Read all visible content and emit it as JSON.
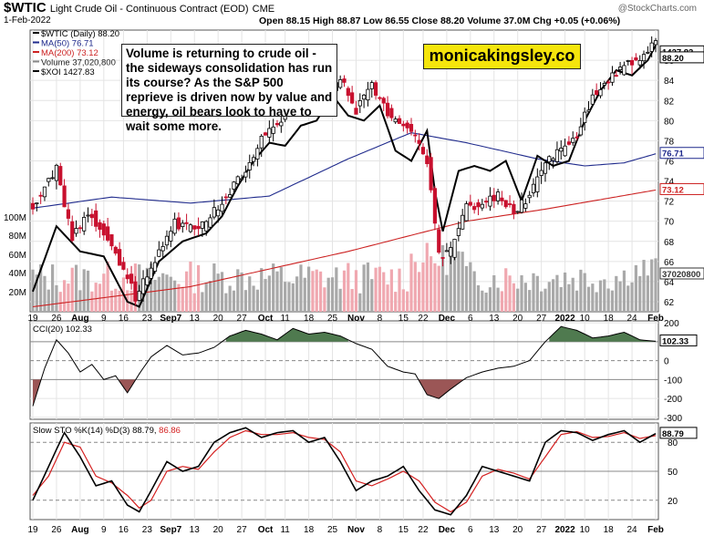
{
  "header": {
    "symbol": "$WTIC",
    "name": "Light Crude Oil - Continuous Contract (EOD)",
    "exchange": "CME",
    "watermark": "@StockCharts.com",
    "date": "1-Feb-2022",
    "ohlc": "Open 88.15  High 88.87  Low 86.55  Close 88.20  Volume 37.0M  Chg +0.05 (+0.06%)"
  },
  "annotation": "Volume is returning to crude oil - the sideways consolidation has run its course? As the S&P 500 reprieve is driven now by value and energy, oil bears look to have to wait some more.",
  "brand": "monicakingsley.co",
  "legend": {
    "price": "$WTIC (Daily) 88.20",
    "ma50": "MA(50) 76.71",
    "ma200": "MA(200) 73.12",
    "volume": "Volume 37,020,800",
    "xoi": "$XOI 1427.83",
    "cci": "CCI(20) 102.33",
    "sto_title": "Slow STO %K(14) %D(3) 88.79,",
    "sto_d": "86.86"
  },
  "colors": {
    "up": "#000000",
    "down": "#c8102e",
    "ma50": "#1f2a8c",
    "ma200": "#cc2222",
    "vol_up": "#a9a9a9",
    "vol_down": "#f0a8b0",
    "cci_pos": "#4f7a4f",
    "cci_neg": "#9b5656",
    "sto_k": "#000000",
    "sto_d": "#d42020"
  },
  "x_axis_labels": [
    "19",
    "26",
    "Aug",
    "9",
    "16",
    "23",
    "Sep7",
    "13",
    "20",
    "27",
    "Oct",
    "11",
    "18",
    "25",
    "Nov",
    "8",
    "15",
    "22",
    "Dec",
    "6",
    "13",
    "20",
    "27",
    "2022",
    "10",
    "18",
    "24",
    "Feb"
  ],
  "chart_data": [
    {
      "type": "candlestick",
      "title": "$WTIC Light Crude Oil - Continuous Contract (EOD)",
      "ylim": [
        61,
        89
      ],
      "y_ticks": [
        62,
        64,
        66,
        68,
        70,
        72,
        74,
        76,
        78,
        80,
        82,
        84,
        86
      ],
      "volume_ticks": [
        "20M",
        "40M",
        "60M",
        "80M",
        "100M"
      ],
      "last_labels": {
        "close": "88.20",
        "xoi": "1427.83",
        "ma50": "76.71",
        "ma200": "73.12",
        "volume": "37020800"
      },
      "close_keypoints": [
        [
          0,
          71.5
        ],
        [
          6,
          75.2
        ],
        [
          10,
          68.2
        ],
        [
          14,
          71.0
        ],
        [
          20,
          67.8
        ],
        [
          26,
          62.5
        ],
        [
          30,
          65.5
        ],
        [
          36,
          69.8
        ],
        [
          42,
          69.0
        ],
        [
          48,
          72.0
        ],
        [
          54,
          75.0
        ],
        [
          58,
          78.5
        ],
        [
          62,
          79.5
        ],
        [
          66,
          82.5
        ],
        [
          70,
          83.4
        ],
        [
          74,
          82.0
        ],
        [
          78,
          84.2
        ],
        [
          82,
          81.0
        ],
        [
          86,
          83.5
        ],
        [
          90,
          80.8
        ],
        [
          96,
          78.8
        ],
        [
          100,
          76.0
        ],
        [
          103,
          66.5
        ],
        [
          106,
          67.0
        ],
        [
          110,
          71.5
        ],
        [
          114,
          71.6
        ],
        [
          118,
          72.5
        ],
        [
          122,
          71.0
        ],
        [
          126,
          72.5
        ],
        [
          130,
          76.0
        ],
        [
          134,
          77.0
        ],
        [
          138,
          78.5
        ],
        [
          142,
          82.5
        ],
        [
          146,
          84.0
        ],
        [
          150,
          85.5
        ],
        [
          154,
          86.0
        ],
        [
          158,
          88.2
        ]
      ],
      "ma50_keypoints": [
        [
          0,
          71.3
        ],
        [
          20,
          72.4
        ],
        [
          40,
          71.8
        ],
        [
          60,
          72.5
        ],
        [
          80,
          76.2
        ],
        [
          96,
          78.8
        ],
        [
          110,
          77.8
        ],
        [
          128,
          76.2
        ],
        [
          140,
          75.5
        ],
        [
          150,
          75.8
        ],
        [
          158,
          76.7
        ]
      ],
      "ma200_keypoints": [
        [
          0,
          61.5
        ],
        [
          40,
          63.5
        ],
        [
          80,
          67.0
        ],
        [
          110,
          70.0
        ],
        [
          130,
          71.2
        ],
        [
          158,
          73.1
        ]
      ],
      "xoi_keypoints": [
        [
          0,
          63.0
        ],
        [
          6,
          69.5
        ],
        [
          12,
          67.0
        ],
        [
          18,
          66.5
        ],
        [
          24,
          62.0
        ],
        [
          27,
          61.5
        ],
        [
          32,
          66.0
        ],
        [
          38,
          68.0
        ],
        [
          44,
          68.8
        ],
        [
          48,
          70.5
        ],
        [
          52,
          73.5
        ],
        [
          56,
          76.0
        ],
        [
          60,
          77.8
        ],
        [
          64,
          77.5
        ],
        [
          68,
          79.5
        ],
        [
          72,
          80.0
        ],
        [
          76,
          82.5
        ],
        [
          80,
          80.5
        ],
        [
          84,
          80.0
        ],
        [
          88,
          81.5
        ],
        [
          92,
          77.0
        ],
        [
          96,
          76.0
        ],
        [
          100,
          79.0
        ],
        [
          102,
          73.0
        ],
        [
          104,
          69.0
        ],
        [
          108,
          75.0
        ],
        [
          112,
          75.5
        ],
        [
          116,
          75.0
        ],
        [
          120,
          76.0
        ],
        [
          124,
          72.0
        ],
        [
          128,
          76.5
        ],
        [
          132,
          75.5
        ],
        [
          136,
          76.0
        ],
        [
          140,
          80.0
        ],
        [
          144,
          83.0
        ],
        [
          148,
          85.0
        ],
        [
          152,
          84.5
        ],
        [
          156,
          86.0
        ],
        [
          158,
          87.5
        ]
      ]
    },
    {
      "type": "line",
      "title": "CCI(20)",
      "ylim": [
        -310,
        210
      ],
      "y_ticks": [
        -300,
        -200,
        -100,
        0,
        100,
        200
      ],
      "last_label": "102.33",
      "keypoints": [
        [
          0,
          -240
        ],
        [
          3,
          -40
        ],
        [
          6,
          110
        ],
        [
          9,
          40
        ],
        [
          12,
          -60
        ],
        [
          15,
          -20
        ],
        [
          18,
          -100
        ],
        [
          21,
          -80
        ],
        [
          24,
          -170
        ],
        [
          27,
          -70
        ],
        [
          30,
          20
        ],
        [
          34,
          80
        ],
        [
          38,
          30
        ],
        [
          42,
          40
        ],
        [
          46,
          70
        ],
        [
          50,
          130
        ],
        [
          54,
          160
        ],
        [
          58,
          140
        ],
        [
          62,
          110
        ],
        [
          66,
          170
        ],
        [
          70,
          140
        ],
        [
          74,
          150
        ],
        [
          78,
          130
        ],
        [
          82,
          90
        ],
        [
          86,
          60
        ],
        [
          90,
          -30
        ],
        [
          94,
          -60
        ],
        [
          97,
          -70
        ],
        [
          100,
          -180
        ],
        [
          103,
          -200
        ],
        [
          106,
          -150
        ],
        [
          110,
          -90
        ],
        [
          114,
          -60
        ],
        [
          118,
          -40
        ],
        [
          122,
          -30
        ],
        [
          126,
          0
        ],
        [
          130,
          100
        ],
        [
          134,
          180
        ],
        [
          138,
          160
        ],
        [
          142,
          120
        ],
        [
          146,
          130
        ],
        [
          150,
          150
        ],
        [
          154,
          110
        ],
        [
          158,
          102
        ]
      ]
    },
    {
      "type": "line",
      "title": "Slow STO %K(14) %D(3)",
      "ylim": [
        0,
        100
      ],
      "y_ticks": [
        20,
        50,
        80
      ],
      "last_labels": {
        "k": "88.79",
        "d": "86.86"
      },
      "k_keypoints": [
        [
          0,
          20
        ],
        [
          4,
          55
        ],
        [
          8,
          90
        ],
        [
          12,
          65
        ],
        [
          16,
          35
        ],
        [
          20,
          40
        ],
        [
          24,
          15
        ],
        [
          27,
          8
        ],
        [
          30,
          30
        ],
        [
          34,
          60
        ],
        [
          38,
          50
        ],
        [
          42,
          55
        ],
        [
          46,
          80
        ],
        [
          50,
          90
        ],
        [
          54,
          95
        ],
        [
          58,
          85
        ],
        [
          62,
          90
        ],
        [
          66,
          92
        ],
        [
          70,
          80
        ],
        [
          74,
          85
        ],
        [
          78,
          60
        ],
        [
          82,
          30
        ],
        [
          86,
          40
        ],
        [
          90,
          45
        ],
        [
          94,
          55
        ],
        [
          98,
          30
        ],
        [
          102,
          10
        ],
        [
          106,
          5
        ],
        [
          110,
          25
        ],
        [
          114,
          55
        ],
        [
          118,
          50
        ],
        [
          122,
          45
        ],
        [
          126,
          40
        ],
        [
          130,
          80
        ],
        [
          134,
          92
        ],
        [
          138,
          90
        ],
        [
          142,
          82
        ],
        [
          146,
          88
        ],
        [
          150,
          92
        ],
        [
          154,
          80
        ],
        [
          158,
          89
        ]
      ],
      "d_keypoints": [
        [
          0,
          25
        ],
        [
          4,
          45
        ],
        [
          8,
          80
        ],
        [
          12,
          75
        ],
        [
          16,
          45
        ],
        [
          20,
          38
        ],
        [
          24,
          25
        ],
        [
          27,
          12
        ],
        [
          30,
          20
        ],
        [
          34,
          50
        ],
        [
          38,
          55
        ],
        [
          42,
          52
        ],
        [
          46,
          70
        ],
        [
          50,
          85
        ],
        [
          54,
          92
        ],
        [
          58,
          88
        ],
        [
          62,
          88
        ],
        [
          66,
          90
        ],
        [
          70,
          85
        ],
        [
          74,
          83
        ],
        [
          78,
          70
        ],
        [
          82,
          40
        ],
        [
          86,
          35
        ],
        [
          90,
          42
        ],
        [
          94,
          50
        ],
        [
          98,
          40
        ],
        [
          102,
          18
        ],
        [
          106,
          8
        ],
        [
          110,
          18
        ],
        [
          114,
          45
        ],
        [
          118,
          52
        ],
        [
          122,
          48
        ],
        [
          126,
          42
        ],
        [
          130,
          65
        ],
        [
          134,
          88
        ],
        [
          138,
          91
        ],
        [
          142,
          85
        ],
        [
          146,
          86
        ],
        [
          150,
          90
        ],
        [
          154,
          84
        ],
        [
          158,
          87
        ]
      ]
    }
  ]
}
